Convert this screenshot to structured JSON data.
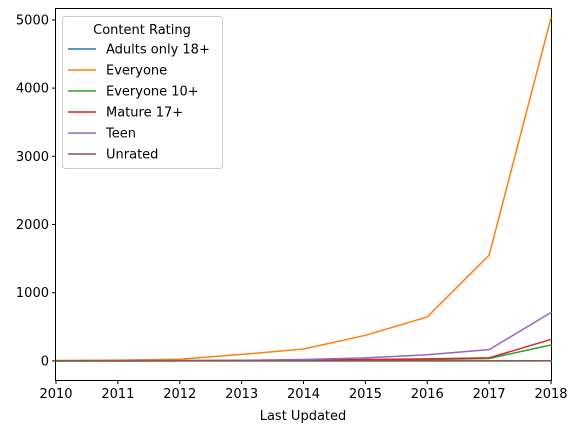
{
  "chart_data": {
    "type": "line",
    "title": "",
    "xlabel": "Last Updated",
    "ylabel": "",
    "x": [
      2010,
      2011,
      2012,
      2013,
      2014,
      2015,
      2016,
      2017,
      2018
    ],
    "xlim": [
      2010,
      2018
    ],
    "ylim": [
      -280,
      5160
    ],
    "x_ticks": [
      "2010",
      "2011",
      "2012",
      "2013",
      "2014",
      "2015",
      "2016",
      "2017",
      "2018"
    ],
    "y_ticks": [
      "0",
      "1000",
      "2000",
      "3000",
      "4000",
      "5000"
    ],
    "y_tick_values": [
      0,
      1000,
      2000,
      3000,
      4000,
      5000
    ],
    "grid": false,
    "legend": {
      "title": "Content Rating",
      "placement": "top-left"
    },
    "series": [
      {
        "name": "Adults only 18+",
        "color": "#1f77b4",
        "values": [
          0,
          0,
          0,
          0,
          0,
          0,
          0,
          0,
          3
        ]
      },
      {
        "name": "Everyone",
        "color": "#ff7f0e",
        "values": [
          5,
          12,
          25,
          95,
          175,
          375,
          645,
          1550,
          5030
        ]
      },
      {
        "name": "Everyone 10+",
        "color": "#2ca02c",
        "values": [
          0,
          1,
          2,
          5,
          10,
          15,
          20,
          35,
          235
        ]
      },
      {
        "name": "Mature 17+",
        "color": "#d62728",
        "values": [
          0,
          1,
          3,
          6,
          12,
          20,
          30,
          45,
          315
        ]
      },
      {
        "name": "Teen",
        "color": "#9467bd",
        "values": [
          1,
          3,
          5,
          10,
          20,
          45,
          90,
          165,
          710
        ]
      },
      {
        "name": "Unrated",
        "color": "#8c564b",
        "values": [
          0,
          0,
          0,
          0,
          0,
          0,
          0,
          0,
          1
        ]
      }
    ]
  }
}
